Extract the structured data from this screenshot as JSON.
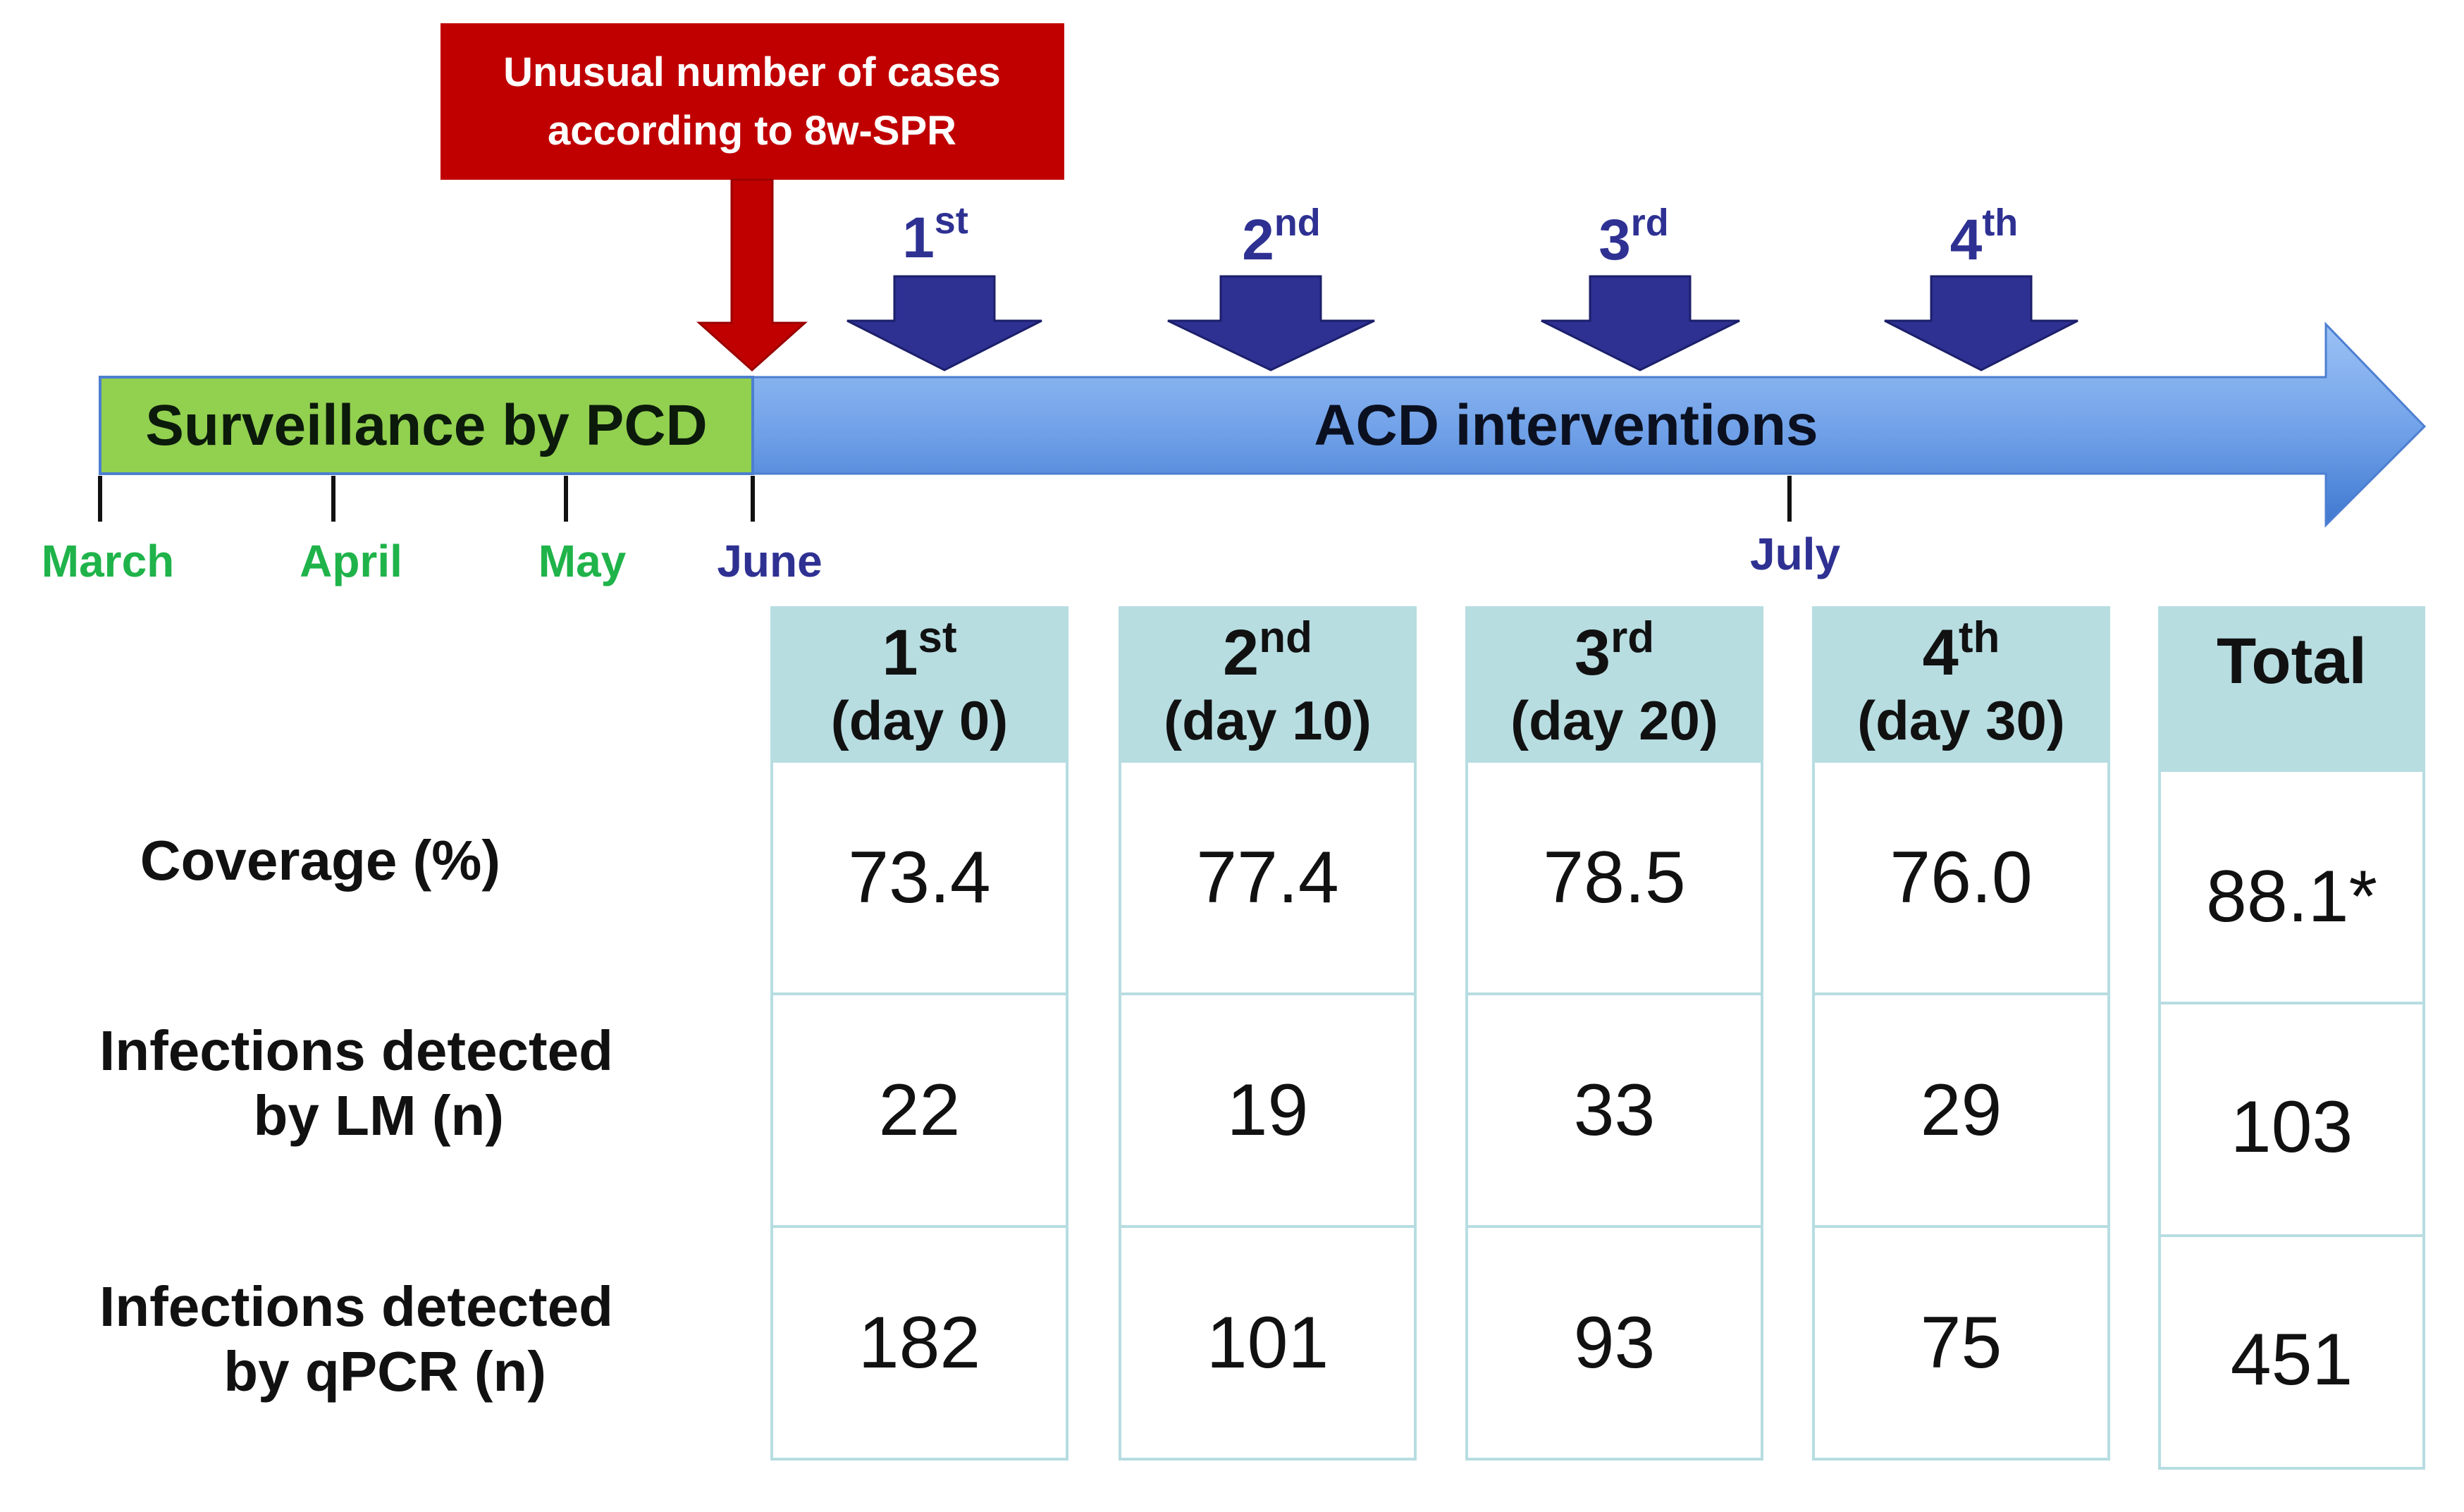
{
  "alert_box": {
    "text_line1": "Unusual number of cases",
    "text_line2": "according to 8w-SPR",
    "color": "#c00000"
  },
  "timeline": {
    "surveillance_label": "Surveillance by PCD",
    "interventions_label": "ACD interventions",
    "surveillance_color": "#92d050",
    "interventions_color": "#6fa0e8",
    "months": [
      {
        "label": "March",
        "color": "#1fb34a"
      },
      {
        "label": "April",
        "color": "#1fb34a"
      },
      {
        "label": "May",
        "color": "#1fb34a"
      },
      {
        "label": "June",
        "color": "#2e3192"
      },
      {
        "label": "July",
        "color": "#2e3192"
      }
    ]
  },
  "rounds": [
    {
      "num": "1",
      "suffix": "st"
    },
    {
      "num": "2",
      "suffix": "nd"
    },
    {
      "num": "3",
      "suffix": "rd"
    },
    {
      "num": "4",
      "suffix": "th"
    }
  ],
  "round_arrow_color": "#2e3192",
  "table": {
    "columns": [
      {
        "num": "1",
        "suffix": "st",
        "sub": "(day 0)"
      },
      {
        "num": "2",
        "suffix": "nd",
        "sub": "(day 10)"
      },
      {
        "num": "3",
        "suffix": "rd",
        "sub": "(day 20)"
      },
      {
        "num": "4",
        "suffix": "th",
        "sub": "(day 30)"
      }
    ],
    "total_label": "Total",
    "rows": [
      {
        "label_lines": [
          "Coverage (%)"
        ],
        "values": [
          "73.4",
          "77.4",
          "78.5",
          "76.0"
        ],
        "total": "88.1*"
      },
      {
        "label_lines": [
          "Infections detected",
          "by LM (n)"
        ],
        "values": [
          "22",
          "19",
          "33",
          "29"
        ],
        "total": "103"
      },
      {
        "label_lines": [
          "Infections detected",
          "by qPCR (n)"
        ],
        "values": [
          "182",
          "101",
          "93",
          "75"
        ],
        "total": "451"
      }
    ],
    "header_color": "#b7dde1"
  }
}
